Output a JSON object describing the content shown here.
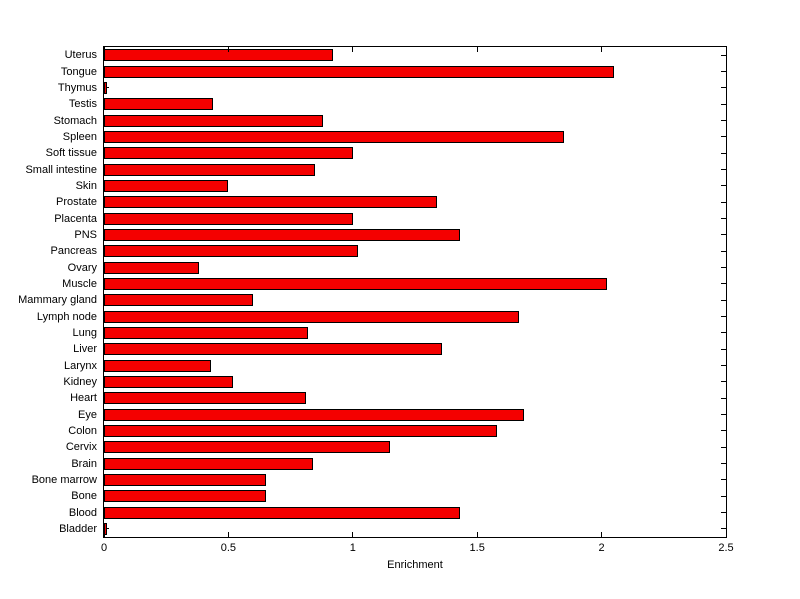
{
  "chart_data": {
    "type": "bar",
    "orientation": "horizontal",
    "title": "",
    "xlabel": "Enrichment",
    "ylabel": "",
    "xlim": [
      0,
      2.5
    ],
    "xticks": [
      0,
      0.5,
      1,
      1.5,
      2,
      2.5
    ],
    "xtick_labels": [
      "0",
      "0.5",
      "1",
      "1.5",
      "2",
      "2.5"
    ],
    "grid": false,
    "legend": null,
    "bar_color": "#f40000",
    "bar_edge_color": "#000000",
    "background": "#ffffff",
    "categories": [
      "Uterus",
      "Tongue",
      "Thymus",
      "Testis",
      "Stomach",
      "Spleen",
      "Soft tissue",
      "Small intestine",
      "Skin",
      "Prostate",
      "Placenta",
      "PNS",
      "Pancreas",
      "Ovary",
      "Muscle",
      "Mammary gland",
      "Lymph node",
      "Lung",
      "Liver",
      "Larynx",
      "Kidney",
      "Heart",
      "Eye",
      "Colon",
      "Cervix",
      "Brain",
      "Bone marrow",
      "Bone",
      "Blood",
      "Bladder"
    ],
    "values": [
      0.92,
      2.05,
      0.01,
      0.44,
      0.88,
      1.85,
      1.0,
      0.85,
      0.5,
      1.34,
      1.0,
      1.43,
      1.02,
      0.38,
      2.02,
      0.6,
      1.67,
      0.82,
      1.36,
      0.43,
      0.52,
      0.81,
      1.69,
      1.58,
      1.15,
      0.84,
      0.65,
      0.65,
      1.43,
      0.01
    ]
  }
}
